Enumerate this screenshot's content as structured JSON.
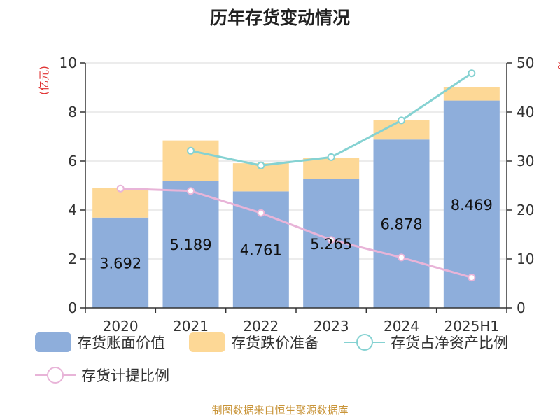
{
  "chart_data": {
    "type": "bar",
    "title": "历年存货变动情况",
    "left_unit": "(亿元)",
    "right_unit": "%",
    "categories": [
      "2020",
      "2021",
      "2022",
      "2023",
      "2024",
      "2025H1"
    ],
    "y_left": {
      "min": 0,
      "max": 10,
      "ticks": [
        0,
        2,
        4,
        6,
        8,
        10
      ]
    },
    "y_right": {
      "min": 0,
      "max": 50,
      "ticks": [
        0,
        10,
        20,
        30,
        40,
        50
      ]
    },
    "stacked": true,
    "grid": true,
    "series": [
      {
        "name": "存货账面价值",
        "kind": "bar",
        "axis": "left",
        "color": "#8eaedb",
        "values": [
          3.692,
          5.189,
          4.761,
          5.265,
          6.878,
          8.469
        ],
        "labels": [
          "3.692",
          "5.189",
          "4.761",
          "5.265",
          "6.878",
          "8.469"
        ]
      },
      {
        "name": "存货跌价准备",
        "kind": "bar",
        "axis": "left",
        "color": "#fdd896",
        "values": [
          1.2,
          1.65,
          1.15,
          0.85,
          0.8,
          0.55
        ]
      },
      {
        "name": "存货占净资产比例",
        "kind": "line",
        "axis": "right",
        "color": "#85d2d2",
        "values": [
          null,
          32.1,
          29.1,
          30.8,
          38.3,
          47.9
        ]
      },
      {
        "name": "存货计提比例",
        "kind": "line",
        "axis": "right",
        "color": "#e8b4d8",
        "values": [
          24.4,
          23.9,
          19.4,
          13.9,
          10.3,
          6.2
        ]
      }
    ],
    "legend_position": "bottom"
  },
  "source": "制图数据来自恒生聚源数据库"
}
